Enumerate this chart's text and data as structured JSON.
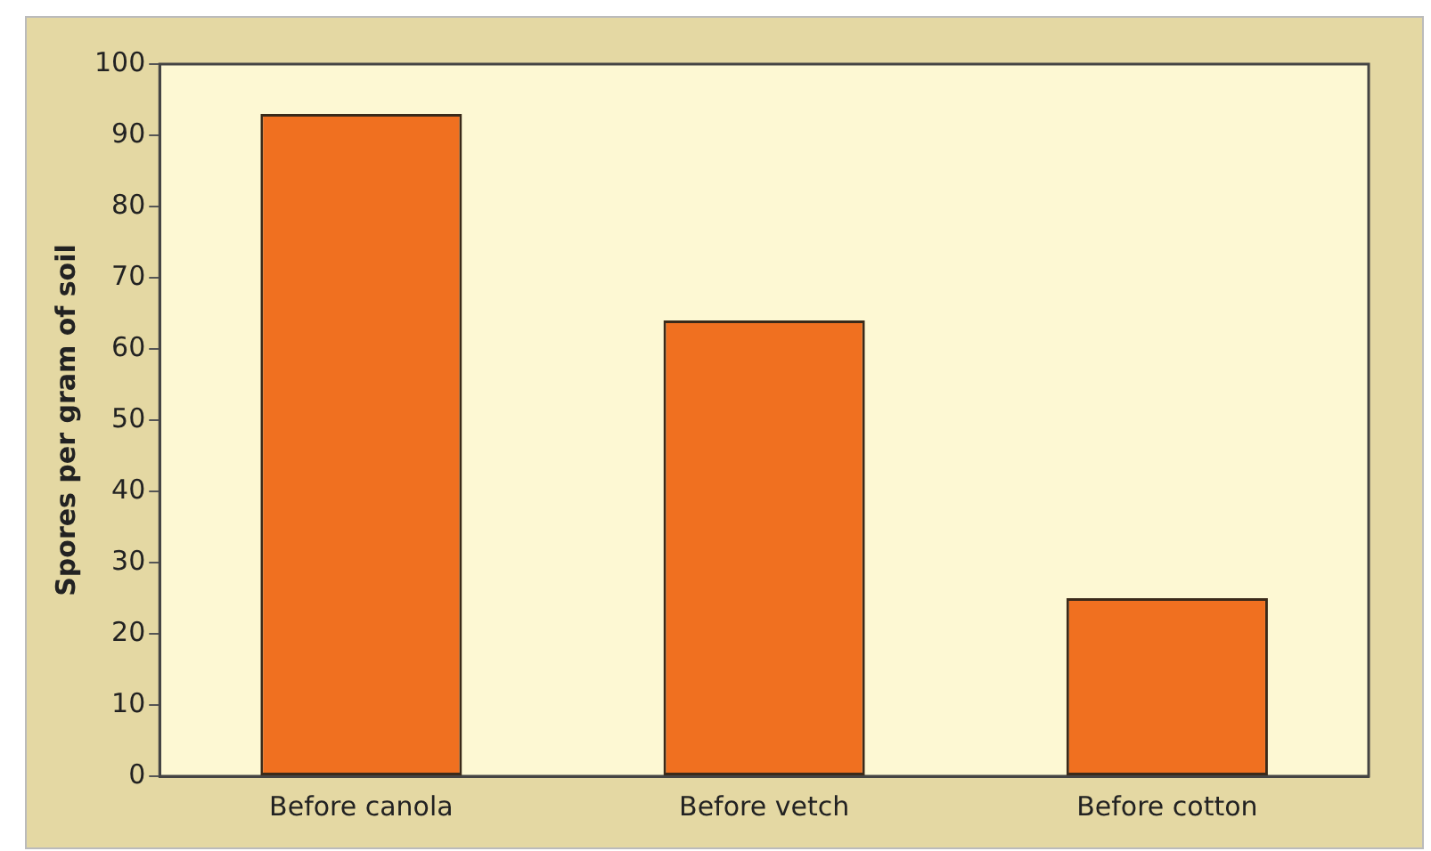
{
  "chart_data": {
    "type": "bar",
    "ylabel": "Spores per gram of soil",
    "categories": [
      "Before canola",
      "Before vetch",
      "Before cotton"
    ],
    "values": [
      93,
      64,
      25
    ],
    "color": "#f07020",
    "ylim": [
      0,
      100
    ],
    "yticks": [
      0,
      10,
      20,
      30,
      40,
      50,
      60,
      70,
      80,
      90,
      100
    ],
    "grid": false,
    "legend": false
  }
}
